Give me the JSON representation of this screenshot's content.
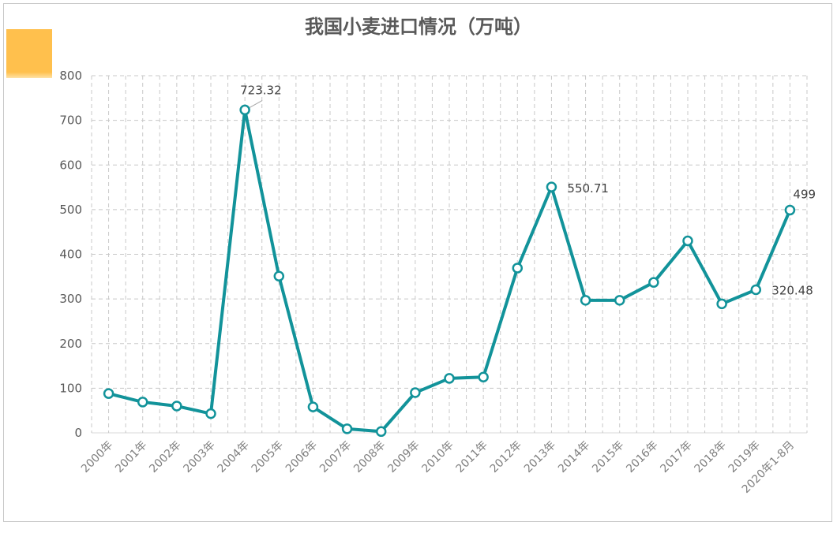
{
  "chart_data": {
    "type": "line",
    "title": "我国小麦进口情况（万吨）",
    "xlabel": "",
    "ylabel": "",
    "ylim": [
      0,
      800
    ],
    "yticks": [
      0,
      100,
      200,
      300,
      400,
      500,
      600,
      700,
      800
    ],
    "grid": true,
    "categories": [
      "2000年",
      "2001年",
      "2002年",
      "2003年",
      "2004年",
      "2005年",
      "2006年",
      "2007年",
      "2008年",
      "2009年",
      "2010年",
      "2011年",
      "2012年",
      "2013年",
      "2014年",
      "2015年",
      "2016年",
      "2017年",
      "2018年",
      "2019年",
      "2020年1-8月"
    ],
    "series": [
      {
        "values": [
          88,
          69,
          60,
          43,
          723.32,
          351,
          58,
          9,
          3,
          90,
          122,
          125,
          369,
          550.71,
          297,
          297,
          337,
          430,
          289,
          320.48,
          499
        ],
        "color": "#12939a"
      }
    ],
    "data_labels": [
      {
        "index": 4,
        "text": "723.32"
      },
      {
        "index": 13,
        "text": "550.71"
      },
      {
        "index": 19,
        "text": "320.48"
      },
      {
        "index": 20,
        "text": "499"
      }
    ]
  },
  "style": {
    "accent_color": "#ffc04d",
    "line_color": "#12939a",
    "grid_color": "#c8c8c8"
  }
}
